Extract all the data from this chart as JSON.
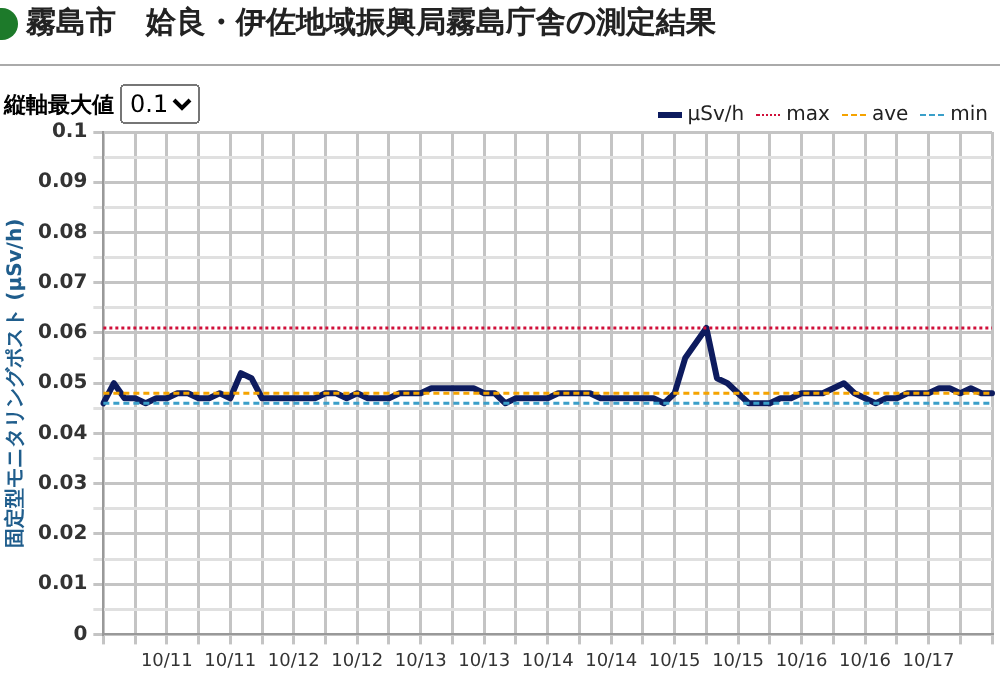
{
  "chart_data": {
    "type": "line",
    "title": "霧島市　姶良・伊佐地域振興局霧島庁舎の測定結果",
    "ylabel": "固定型モニタリングポスト (μSv/h)",
    "annotations": [
      "縦軸最大値",
      "0.1"
    ],
    "categories": [
      null,
      null,
      null,
      null,
      null,
      null,
      "10/11",
      null,
      null,
      null,
      null,
      null,
      "10/11",
      null,
      null,
      null,
      null,
      null,
      "10/12",
      null,
      null,
      null,
      null,
      null,
      "10/12",
      null,
      null,
      null,
      null,
      null,
      "10/13",
      null,
      null,
      null,
      null,
      null,
      "10/13",
      null,
      null,
      null,
      null,
      null,
      "10/14",
      null,
      null,
      null,
      null,
      null,
      "10/14",
      null,
      null,
      null,
      null,
      null,
      "10/15",
      null,
      null,
      null,
      null,
      null,
      "10/15",
      null,
      null,
      null,
      null,
      null,
      "10/16",
      null,
      null,
      null,
      null,
      null,
      "10/16",
      null,
      null,
      null,
      null,
      null,
      "10/17",
      null,
      null,
      null,
      null,
      null,
      null
    ],
    "series": [
      {
        "name": "μSv/h",
        "color": "#0d1b5e",
        "values": [
          0.046,
          0.05,
          0.047,
          0.047,
          0.046,
          0.047,
          0.047,
          0.048,
          0.048,
          0.047,
          0.047,
          0.048,
          0.047,
          0.052,
          0.051,
          0.047,
          0.047,
          0.047,
          0.047,
          0.047,
          0.047,
          0.048,
          0.048,
          0.047,
          0.048,
          0.047,
          0.047,
          0.047,
          0.048,
          0.048,
          0.048,
          0.049,
          0.049,
          0.049,
          0.049,
          0.049,
          0.048,
          0.048,
          0.046,
          0.047,
          0.047,
          0.047,
          0.047,
          0.048,
          0.048,
          0.048,
          0.048,
          0.047,
          0.047,
          0.047,
          0.047,
          0.047,
          0.047,
          0.046,
          0.048,
          0.055,
          0.058,
          0.061,
          0.051,
          0.05,
          0.048,
          0.046,
          0.046,
          0.046,
          0.047,
          0.047,
          0.048,
          0.048,
          0.048,
          0.049,
          0.05,
          0.048,
          0.047,
          0.046,
          0.047,
          0.047,
          0.048,
          0.048,
          0.048,
          0.049,
          0.049,
          0.048,
          0.049,
          0.048,
          0.048
        ]
      }
    ],
    "ref_lines": [
      {
        "axis": "y",
        "value": 0.061,
        "label": "max",
        "color": "#d0103a",
        "line_style": "dotted"
      },
      {
        "axis": "y",
        "value": 0.048,
        "label": "ave",
        "color": "#f5a300",
        "line_style": "dashed"
      },
      {
        "axis": "y",
        "value": 0.046,
        "label": "min",
        "color": "#3a9fc9",
        "line_style": "dashed"
      }
    ],
    "ylim": [
      0,
      0.1
    ],
    "yticks": [
      0,
      {
        "value": 0.005,
        "label": null
      },
      0.01,
      {
        "value": 0.015,
        "label": null
      },
      0.02,
      {
        "value": 0.025,
        "label": null
      },
      0.03,
      {
        "value": 0.035,
        "label": null
      },
      0.04,
      {
        "value": 0.045,
        "label": null
      },
      0.05,
      {
        "value": 0.055,
        "label": null
      },
      0.06,
      {
        "value": 0.065,
        "label": null
      },
      0.07,
      {
        "value": 0.075,
        "label": null
      },
      0.08,
      {
        "value": 0.085,
        "label": null
      },
      0.09,
      {
        "value": 0.095,
        "label": null
      },
      0.1
    ],
    "grid": true,
    "legend": "top right",
    "marker": "none",
    "line_style": "solid"
  }
}
